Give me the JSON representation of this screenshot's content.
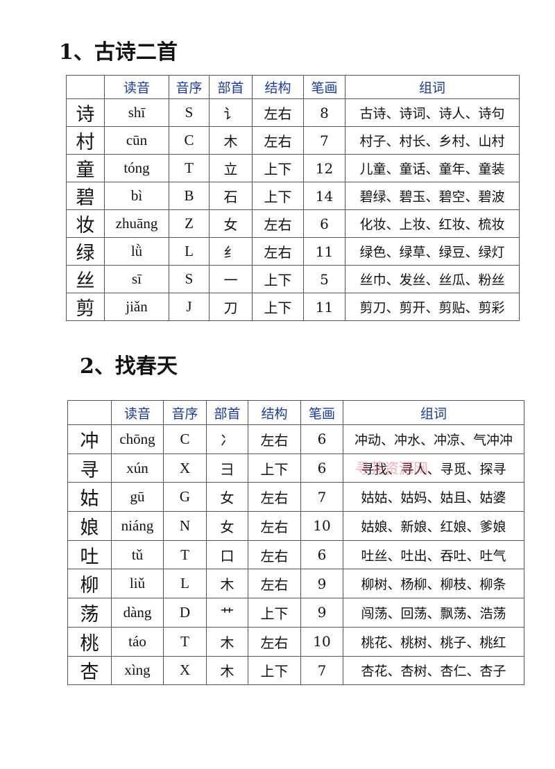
{
  "sections": [
    {
      "title": "1、古诗二首",
      "table": {
        "header": [
          "读音",
          "音序",
          "部首",
          "结构",
          "笔画",
          "组词"
        ],
        "rows": [
          [
            "诗",
            "shī",
            "S",
            "讠",
            "左右",
            8,
            "古诗、诗词、诗人、诗句"
          ],
          [
            "村",
            "cūn",
            "C",
            "木",
            "左右",
            7,
            "村子、村长、乡村、山村"
          ],
          [
            "童",
            "tóng",
            "T",
            "立",
            "上下",
            12,
            "儿童、童话、童年、童装"
          ],
          [
            "碧",
            "bì",
            "B",
            "石",
            "上下",
            14,
            "碧绿、碧玉、碧空、碧波"
          ],
          [
            "妆",
            "zhuāng",
            "Z",
            "女",
            "左右",
            6,
            "化妆、上妆、红妆、梳妆"
          ],
          [
            "绿",
            "lǜ",
            "L",
            "纟",
            "左右",
            11,
            "绿色、绿草、绿豆、绿灯"
          ],
          [
            "丝",
            "sī",
            "S",
            "一",
            "上下",
            5,
            "丝巾、发丝、丝瓜、粉丝"
          ],
          [
            "剪",
            "jiǎn",
            "J",
            "刀",
            "上下",
            11,
            "剪刀、剪开、剪贴、剪彩"
          ]
        ]
      }
    },
    {
      "title": "2、找春天",
      "table": {
        "header": [
          "读音",
          "音序",
          "部首",
          "结构",
          "笔画",
          "组词"
        ],
        "rows": [
          [
            "冲",
            "chōng",
            "C",
            "冫",
            "左右",
            6,
            "冲动、冲水、冲凉、气冲冲"
          ],
          [
            "寻",
            "xún",
            "X",
            "彐",
            "上下",
            6,
            "寻找、寻人、寻觅、探寻"
          ],
          [
            "姑",
            "gū",
            "G",
            "女",
            "左右",
            7,
            "姑姑、姑妈、姑且、姑婆"
          ],
          [
            "娘",
            "niáng",
            "N",
            "女",
            "左右",
            10,
            "姑娘、新娘、红娘、爹娘"
          ],
          [
            "吐",
            "tǔ",
            "T",
            "口",
            "左右",
            6,
            "吐丝、吐出、吞吐、吐气"
          ],
          [
            "柳",
            "liǔ",
            "L",
            "木",
            "左右",
            9,
            "柳树、杨柳、柳枝、柳条"
          ],
          [
            "荡",
            "dàng",
            "D",
            "艹",
            "上下",
            9,
            "闯荡、回荡、飘荡、浩荡"
          ],
          [
            "桃",
            "táo",
            "T",
            "木",
            "左右",
            10,
            "桃花、桃树、桃子、桃红"
          ],
          [
            "杏",
            "xìng",
            "X",
            "木",
            "上下",
            7,
            "杏花、杏树、杏仁、杏子"
          ]
        ]
      }
    }
  ],
  "watermark": "寻芸资源网"
}
